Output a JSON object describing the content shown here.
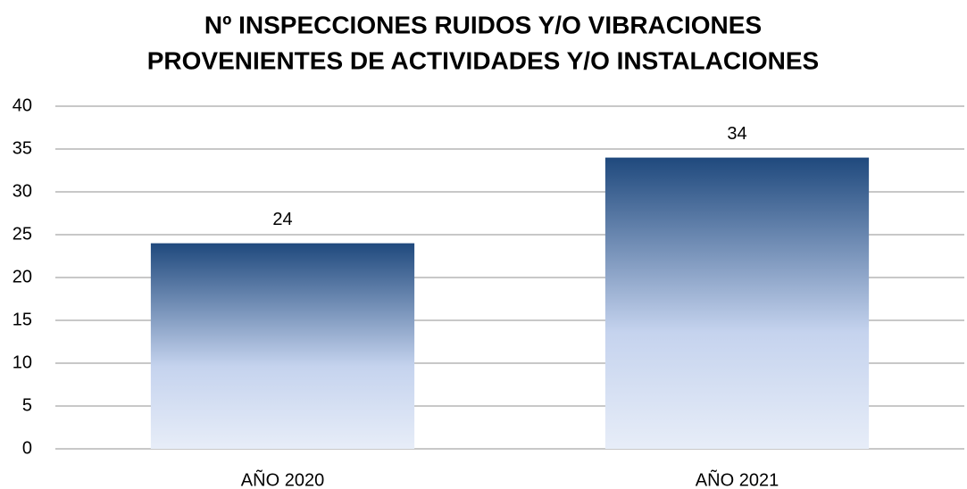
{
  "chart_data": {
    "type": "bar",
    "title": [
      "Nº INSPECCIONES RUIDOS Y/O VIBRACIONES",
      "PROVENIENTES DE ACTIVIDADES Y/O INSTALACIONES"
    ],
    "categories": [
      "AÑO 2020",
      "AÑO 2021"
    ],
    "values": [
      24,
      34
    ],
    "color": "#1f497d",
    "ylim": [
      0,
      40
    ],
    "yticks": [
      0,
      5,
      10,
      15,
      20,
      25,
      30,
      35,
      40
    ],
    "grid": true
  }
}
